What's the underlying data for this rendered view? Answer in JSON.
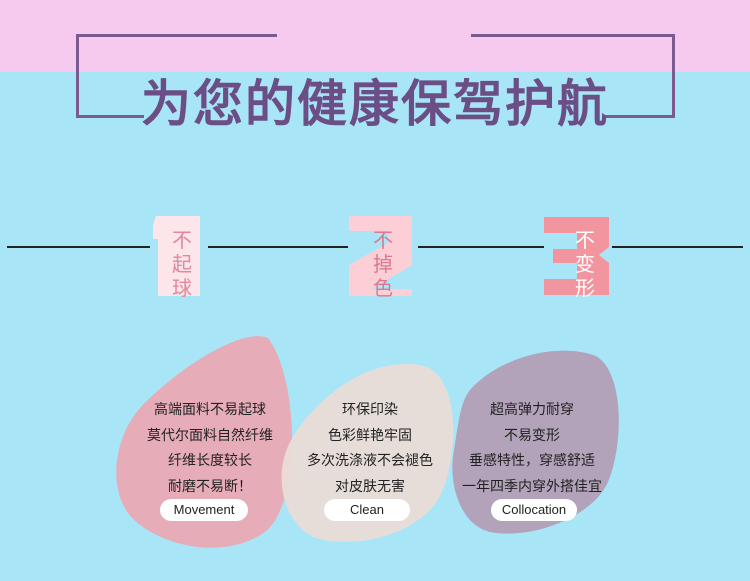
{
  "title": "为您的健康保驾护航",
  "features": [
    {
      "number": "1",
      "label": [
        "不",
        "起",
        "球"
      ],
      "lines": [
        "高端面料不易起球",
        "莫代尔面料自然纤维",
        "纤维长度较长",
        "耐磨不易断！"
      ],
      "tag": "Movement"
    },
    {
      "number": "2",
      "label": [
        "不",
        "掉",
        "色"
      ],
      "lines": [
        "环保印染",
        "色彩鲜艳牢固",
        "多次洗涤液不会褪色",
        "对皮肤无害"
      ],
      "tag": "Clean"
    },
    {
      "number": "3",
      "label": [
        "不",
        "变",
        "形"
      ],
      "lines": [
        "超高弹力耐穿",
        "不易变形",
        "垂感特性，穿感舒适",
        "一年四季内穿外搭佳宜"
      ],
      "tag": "Collocation"
    }
  ],
  "colors": {
    "background": "#a8e6f7",
    "top_band": "#f6c9ee",
    "title": "#6b4e86",
    "blob1": "#e9a9b4",
    "blob2": "#ecdcd6",
    "blob3": "#b39db5"
  }
}
